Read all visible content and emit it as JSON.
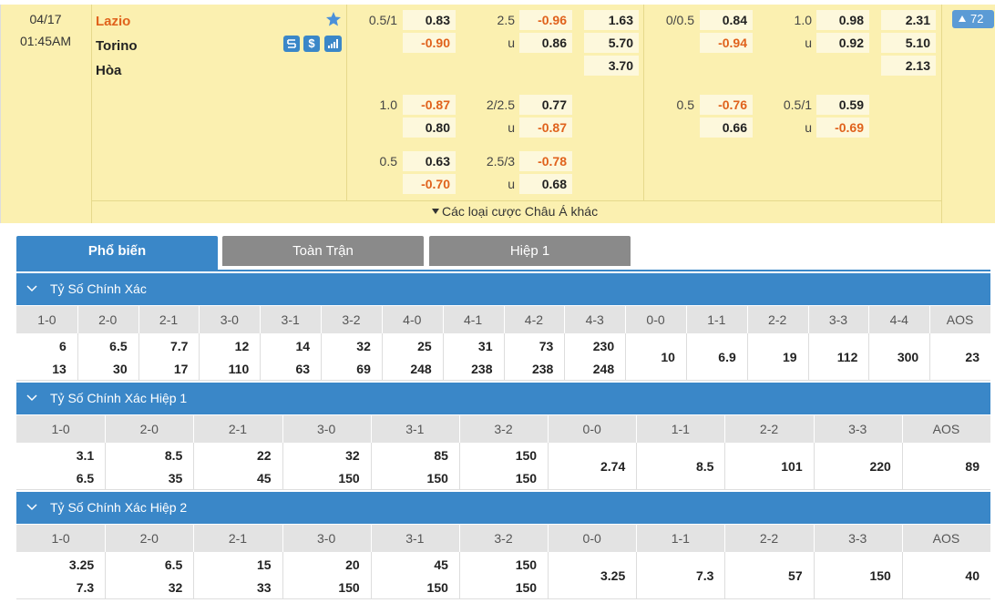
{
  "match": {
    "date": "04/17",
    "time": "01:45AM",
    "home": "Lazio",
    "away": "Torino",
    "draw": "Hòa",
    "icon_dollar": "$",
    "more_count": "72"
  },
  "full_time": [
    {
      "handicap": {
        "line": "0.5/1",
        "home": "0.83",
        "away": "-0.90"
      },
      "over_under": {
        "line": "2.5",
        "over": "-0.96",
        "under_label": "u",
        "under": "0.86"
      },
      "1x2": [
        "1.63",
        "5.70",
        "3.70"
      ]
    },
    {
      "handicap": {
        "line": "1.0",
        "home": "-0.87",
        "away": "0.80"
      },
      "over_under": {
        "line": "2/2.5",
        "over": "0.77",
        "under_label": "u",
        "under": "-0.87"
      }
    },
    {
      "handicap": {
        "line": "0.5",
        "home": "0.63",
        "away": "-0.70"
      },
      "over_under": {
        "line": "2.5/3",
        "over": "-0.78",
        "under_label": "u",
        "under": "0.68"
      }
    }
  ],
  "first_half": [
    {
      "handicap": {
        "line": "0/0.5",
        "home": "0.84",
        "away": "-0.94"
      },
      "over_under": {
        "line": "1.0",
        "over": "0.98",
        "under_label": "u",
        "under": "0.92"
      },
      "1x2": [
        "2.31",
        "5.10",
        "2.13"
      ]
    },
    {
      "handicap": {
        "line": "0.5",
        "home": "-0.76",
        "away": "0.66"
      },
      "over_under": {
        "line": "0.5/1",
        "over": "0.59",
        "under_label": "u",
        "under": "-0.69"
      }
    }
  ],
  "other_asian": "Các loại cược Châu Á khác",
  "tabs": [
    "Phổ biến",
    "Toàn Trận",
    "Hiệp 1"
  ],
  "sections": [
    {
      "title": "Tỷ Số Chính Xác",
      "headers": [
        "1-0",
        "2-0",
        "2-1",
        "3-0",
        "3-1",
        "3-2",
        "4-0",
        "4-1",
        "4-2",
        "4-3",
        "0-0",
        "1-1",
        "2-2",
        "3-3",
        "4-4",
        "AOS"
      ],
      "cells": [
        [
          "6",
          "13"
        ],
        [
          "6.5",
          "30"
        ],
        [
          "7.7",
          "17"
        ],
        [
          "12",
          "110"
        ],
        [
          "14",
          "63"
        ],
        [
          "32",
          "69"
        ],
        [
          "25",
          "248"
        ],
        [
          "31",
          "238"
        ],
        [
          "73",
          "238"
        ],
        [
          "230",
          "248"
        ],
        [
          "10"
        ],
        [
          "6.9"
        ],
        [
          "19"
        ],
        [
          "112"
        ],
        [
          "300"
        ],
        [
          "23"
        ]
      ]
    },
    {
      "title": "Tỷ Số Chính Xác Hiệp 1",
      "headers": [
        "1-0",
        "2-0",
        "2-1",
        "3-0",
        "3-1",
        "3-2",
        "0-0",
        "1-1",
        "2-2",
        "3-3",
        "AOS"
      ],
      "cells": [
        [
          "3.1",
          "6.5"
        ],
        [
          "8.5",
          "35"
        ],
        [
          "22",
          "45"
        ],
        [
          "32",
          "150"
        ],
        [
          "85",
          "150"
        ],
        [
          "150",
          "150"
        ],
        [
          "2.74"
        ],
        [
          "8.5"
        ],
        [
          "101"
        ],
        [
          "220"
        ],
        [
          "89"
        ]
      ]
    },
    {
      "title": "Tỷ Số Chính Xác Hiệp 2",
      "headers": [
        "1-0",
        "2-0",
        "2-1",
        "3-0",
        "3-1",
        "3-2",
        "0-0",
        "1-1",
        "2-2",
        "3-3",
        "AOS"
      ],
      "cells": [
        [
          "3.25",
          "7.3"
        ],
        [
          "6.5",
          "32"
        ],
        [
          "15",
          "33"
        ],
        [
          "20",
          "150"
        ],
        [
          "45",
          "150"
        ],
        [
          "150",
          "150"
        ],
        [
          "3.25"
        ],
        [
          "7.3"
        ],
        [
          "57"
        ],
        [
          "150"
        ],
        [
          "40"
        ]
      ]
    }
  ]
}
